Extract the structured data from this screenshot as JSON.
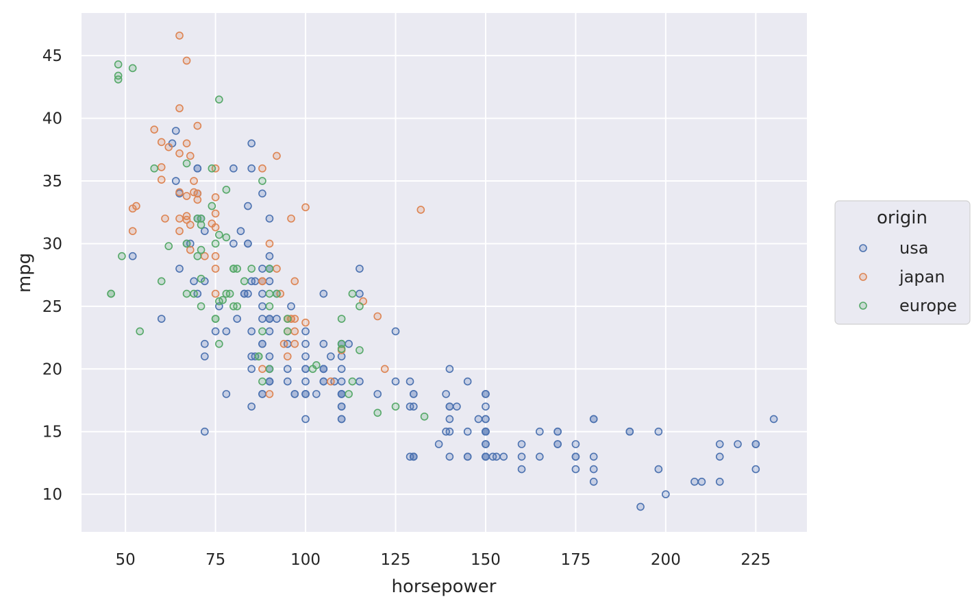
{
  "chart_data": {
    "type": "scatter",
    "title": "",
    "xlabel": "horsepower",
    "ylabel": "mpg",
    "xlim": [
      37.8,
      239.2
    ],
    "ylim": [
      7.0,
      48.4
    ],
    "xticks": [
      50,
      75,
      100,
      125,
      150,
      175,
      200,
      225
    ],
    "yticks": [
      10,
      15,
      20,
      25,
      30,
      35,
      40,
      45
    ],
    "grid": true,
    "background": "#eaeaf2",
    "legend": {
      "title": "origin",
      "placement": "right",
      "entries": [
        "usa",
        "japan",
        "europe"
      ]
    },
    "series": [
      {
        "name": "usa",
        "color": "#4c72b0",
        "points": [
          [
            130,
            18
          ],
          [
            165,
            15
          ],
          [
            150,
            18
          ],
          [
            150,
            16
          ],
          [
            140,
            17
          ],
          [
            198,
            15
          ],
          [
            220,
            14
          ],
          [
            215,
            14
          ],
          [
            225,
            14
          ],
          [
            190,
            15
          ],
          [
            170,
            15
          ],
          [
            160,
            14
          ],
          [
            150,
            15
          ],
          [
            225,
            14
          ],
          [
            95,
            22
          ],
          [
            97,
            18
          ],
          [
            85,
            21
          ],
          [
            90,
            19
          ],
          [
            88,
            18
          ],
          [
            100,
            18
          ],
          [
            90,
            19
          ],
          [
            150,
            15
          ],
          [
            155,
            13
          ],
          [
            160,
            13
          ],
          [
            165,
            13
          ],
          [
            175,
            12
          ],
          [
            153,
            13
          ],
          [
            150,
            14
          ],
          [
            180,
            12
          ],
          [
            170,
            15
          ],
          [
            175,
            13
          ],
          [
            110,
            18
          ],
          [
            72,
            22
          ],
          [
            100,
            19
          ],
          [
            88,
            18
          ],
          [
            86,
            21
          ],
          [
            90,
            21
          ],
          [
            70,
            26
          ],
          [
            76,
            25
          ],
          [
            65,
            28
          ],
          [
            69,
            27
          ],
          [
            67,
            30
          ],
          [
            145,
            13
          ],
          [
            110,
            16
          ],
          [
            175,
            14
          ],
          [
            180,
            11
          ],
          [
            110,
            17
          ],
          [
            105,
            20
          ],
          [
            140,
            15
          ],
          [
            150,
            16
          ],
          [
            180,
            16
          ],
          [
            129,
            13
          ],
          [
            230,
            16
          ],
          [
            215,
            11
          ],
          [
            198,
            12
          ],
          [
            225,
            12
          ],
          [
            215,
            13
          ],
          [
            193,
            9
          ],
          [
            100,
            18
          ],
          [
            105,
            19
          ],
          [
            100,
            22
          ],
          [
            88,
            24
          ],
          [
            90,
            28
          ],
          [
            70,
            34
          ],
          [
            130,
            18
          ],
          [
            150,
            14
          ],
          [
            150,
            14
          ],
          [
            140,
            17
          ],
          [
            150,
            15
          ],
          [
            170,
            14
          ],
          [
            160,
            12
          ],
          [
            150,
            13
          ],
          [
            140,
            16
          ],
          [
            150,
            15
          ],
          [
            180,
            13
          ],
          [
            130,
            17
          ],
          [
            150,
            13
          ],
          [
            110,
            18
          ],
          [
            105,
            19
          ],
          [
            100,
            21
          ],
          [
            88,
            22
          ],
          [
            72,
            21
          ],
          [
            110,
            22
          ],
          [
            110,
            18
          ],
          [
            129,
            19
          ],
          [
            75,
            23
          ],
          [
            83,
            26
          ],
          [
            78,
            23
          ],
          [
            96,
            25
          ],
          [
            150,
            13
          ],
          [
            208,
            11
          ],
          [
            210,
            11
          ],
          [
            148,
            16
          ],
          [
            190,
            15
          ],
          [
            145,
            13
          ],
          [
            137,
            14
          ],
          [
            150,
            15
          ],
          [
            95,
            20
          ],
          [
            100,
            20
          ],
          [
            107,
            21
          ],
          [
            108,
            19
          ],
          [
            100,
            18
          ],
          [
            105,
            22
          ],
          [
            103,
            18
          ],
          [
            110,
            17
          ],
          [
            90,
            23
          ],
          [
            80,
            30
          ],
          [
            71,
            32
          ],
          [
            72,
            15
          ],
          [
            100,
            16
          ],
          [
            110,
            22
          ],
          [
            85,
            20
          ],
          [
            84,
            26
          ],
          [
            90,
            24
          ],
          [
            85,
            23
          ],
          [
            81,
            24
          ],
          [
            115,
            19
          ],
          [
            125,
            23
          ],
          [
            152,
            13
          ],
          [
            125,
            19
          ],
          [
            145,
            15
          ],
          [
            140,
            20
          ],
          [
            200,
            10
          ],
          [
            145,
            19
          ],
          [
            150,
            18
          ],
          [
            180,
            16
          ],
          [
            175,
            13
          ],
          [
            170,
            14
          ],
          [
            130,
            13
          ],
          [
            139,
            18
          ],
          [
            112,
            22
          ],
          [
            120,
            18
          ],
          [
            150,
            17
          ],
          [
            85,
            27
          ],
          [
            115,
            26
          ],
          [
            110,
            21
          ],
          [
            83,
            26
          ],
          [
            90,
            28
          ],
          [
            150,
            18
          ],
          [
            129,
            17
          ],
          [
            130,
            13
          ],
          [
            110,
            20
          ],
          [
            142,
            17
          ],
          [
            130,
            13
          ],
          [
            140,
            13
          ],
          [
            150,
            13
          ],
          [
            110,
            18
          ],
          [
            139,
            15
          ],
          [
            105,
            20
          ],
          [
            100,
            23
          ],
          [
            90,
            29
          ],
          [
            88,
            26
          ],
          [
            92,
            24
          ],
          [
            90,
            19
          ],
          [
            110,
            16
          ],
          [
            78,
            18
          ],
          [
            90,
            24
          ],
          [
            88,
            22
          ],
          [
            105,
            20
          ],
          [
            85,
            36
          ],
          [
            115,
            28
          ],
          [
            90,
            27
          ],
          [
            68,
            30
          ],
          [
            105,
            26
          ],
          [
            90,
            32
          ],
          [
            64,
            35
          ],
          [
            88,
            27
          ],
          [
            84,
            30
          ],
          [
            86,
            27
          ],
          [
            88,
            28
          ],
          [
            90,
            24
          ],
          [
            92,
            26
          ],
          [
            84,
            30
          ],
          [
            65,
            34
          ],
          [
            72,
            31
          ],
          [
            84,
            33
          ],
          [
            70,
            32
          ],
          [
            85,
            38
          ],
          [
            80,
            36
          ],
          [
            88,
            34
          ],
          [
            70,
            36
          ],
          [
            63,
            38
          ],
          [
            64,
            39
          ],
          [
            52,
            29
          ],
          [
            60,
            24
          ],
          [
            90,
            20
          ],
          [
            110,
            19
          ],
          [
            100,
            20
          ],
          [
            88,
            25
          ],
          [
            97,
            18
          ],
          [
            95,
            19
          ],
          [
            72,
            27
          ],
          [
            90,
            20
          ],
          [
            85,
            17
          ],
          [
            70,
            36
          ],
          [
            82,
            31
          ]
        ]
      },
      {
        "name": "japan",
        "color": "#dd8452",
        "points": [
          [
            95,
            24
          ],
          [
            88,
            27
          ],
          [
            90,
            18
          ],
          [
            95,
            24
          ],
          [
            65,
            31
          ],
          [
            69,
            35
          ],
          [
            97,
            27
          ],
          [
            92,
            37
          ],
          [
            97,
            24
          ],
          [
            88,
            27
          ],
          [
            65,
            46.6
          ],
          [
            67,
            44.6
          ],
          [
            65,
            40.8
          ],
          [
            70,
            39.4
          ],
          [
            58,
            39.1
          ],
          [
            60,
            38.1
          ],
          [
            67,
            38
          ],
          [
            62,
            37.7
          ],
          [
            65,
            37.2
          ],
          [
            68,
            37
          ],
          [
            75,
            36
          ],
          [
            88,
            36
          ],
          [
            60,
            36.1
          ],
          [
            65,
            34.1
          ],
          [
            69,
            34.1
          ],
          [
            67,
            33.8
          ],
          [
            75,
            33.7
          ],
          [
            70,
            33.5
          ],
          [
            53,
            33
          ],
          [
            100,
            32.9
          ],
          [
            132,
            32.7
          ],
          [
            52,
            32.8
          ],
          [
            96,
            32
          ],
          [
            65,
            32
          ],
          [
            75,
            32.4
          ],
          [
            67,
            32.2
          ],
          [
            61,
            32
          ],
          [
            67,
            31.9
          ],
          [
            74,
            31.6
          ],
          [
            68,
            31.5
          ],
          [
            75,
            31.3
          ],
          [
            52,
            31
          ],
          [
            60,
            35.1
          ],
          [
            97,
            23
          ],
          [
            97,
            22
          ],
          [
            122,
            20
          ],
          [
            116,
            25.4
          ],
          [
            120,
            24.2
          ],
          [
            110,
            21.5
          ],
          [
            94,
            22
          ],
          [
            88,
            20
          ],
          [
            93,
            26
          ],
          [
            100,
            23.7
          ],
          [
            75,
            29
          ],
          [
            68,
            29.5
          ],
          [
            95,
            23
          ],
          [
            96,
            24
          ],
          [
            107,
            19
          ],
          [
            75,
            28
          ],
          [
            95,
            21
          ],
          [
            96,
            24
          ],
          [
            90,
            30
          ],
          [
            70,
            34
          ],
          [
            75,
            26
          ],
          [
            92,
            28
          ],
          [
            72,
            29
          ]
        ]
      },
      {
        "name": "europe",
        "color": "#55a868",
        "points": [
          [
            46,
            26
          ],
          [
            87,
            21
          ],
          [
            90,
            25
          ],
          [
            95,
            24
          ],
          [
            113,
            26
          ],
          [
            90,
            28
          ],
          [
            48,
            43.1
          ],
          [
            52,
            44
          ],
          [
            48,
            44.3
          ],
          [
            48,
            43.4
          ],
          [
            76,
            41.5
          ],
          [
            74,
            36
          ],
          [
            58,
            36
          ],
          [
            67,
            36.4
          ],
          [
            88,
            35
          ],
          [
            78,
            34.3
          ],
          [
            74,
            33
          ],
          [
            71,
            31.5
          ],
          [
            70,
            32
          ],
          [
            49,
            29
          ],
          [
            75,
            30
          ],
          [
            78,
            30.5
          ],
          [
            62,
            29.8
          ],
          [
            71,
            29.5
          ],
          [
            76,
            30.7
          ],
          [
            54,
            23
          ],
          [
            60,
            27
          ],
          [
            69,
            26
          ],
          [
            70,
            29
          ],
          [
            71,
            27.2
          ],
          [
            76,
            25.4
          ],
          [
            67,
            26
          ],
          [
            80,
            28
          ],
          [
            75,
            24
          ],
          [
            77,
            25.5
          ],
          [
            87,
            21
          ],
          [
            67,
            30
          ],
          [
            46,
            26
          ],
          [
            71,
            25
          ],
          [
            81,
            25
          ],
          [
            103,
            20.3
          ],
          [
            102,
            20
          ],
          [
            88,
            23
          ],
          [
            110,
            24
          ],
          [
            133,
            16.2
          ],
          [
            125,
            17
          ],
          [
            115,
            25
          ],
          [
            120,
            16.5
          ],
          [
            110,
            22
          ],
          [
            113,
            19
          ],
          [
            95,
            23
          ],
          [
            112,
            18
          ],
          [
            81,
            28
          ],
          [
            80,
            25
          ],
          [
            75,
            24
          ],
          [
            92,
            26
          ],
          [
            90,
            20
          ],
          [
            88,
            19
          ],
          [
            78,
            26
          ],
          [
            79,
            26
          ],
          [
            80,
            28
          ],
          [
            83,
            27
          ],
          [
            76,
            22
          ],
          [
            71,
            32
          ],
          [
            90,
            26
          ],
          [
            110,
            21.6
          ],
          [
            115,
            21.5
          ],
          [
            85,
            28
          ]
        ]
      }
    ]
  }
}
